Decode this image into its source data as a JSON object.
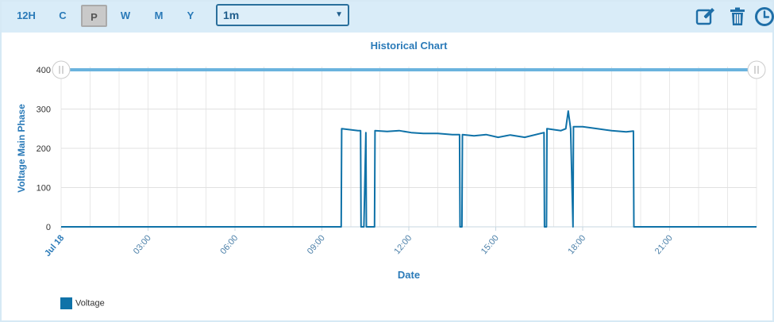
{
  "toolbar": {
    "timeframes": [
      {
        "label": "12H",
        "active": false
      },
      {
        "label": "C",
        "active": false
      },
      {
        "label": "P",
        "active": true
      },
      {
        "label": "W",
        "active": false
      },
      {
        "label": "M",
        "active": false
      },
      {
        "label": "Y",
        "active": false
      }
    ],
    "period": {
      "selected": "1m"
    },
    "icons": [
      "edit-icon",
      "trash-icon",
      "clock-icon"
    ]
  },
  "colors": {
    "accent": "#2a7ab8",
    "series": "#0f72a8",
    "toolbar_bg": "#d9ecf8",
    "slider": "#6ab3de"
  },
  "legend": {
    "items": [
      "Voltage"
    ]
  },
  "chart_data": {
    "type": "line",
    "title": "Historical Chart",
    "xlabel": "Date",
    "ylabel": "Voltage Main Phase",
    "x_tick_labels": [
      "Jul 18",
      "03:00",
      "06:00",
      "09:00",
      "12:00",
      "15:00",
      "18:00",
      "21:00"
    ],
    "y_tick_labels": [
      "0",
      "100",
      "200",
      "300",
      "400"
    ],
    "xlim": [
      "00:00",
      "24:00"
    ],
    "ylim": [
      0,
      400
    ],
    "grid": true,
    "legend_position": "bottom-left",
    "series": [
      {
        "name": "Voltage",
        "x": [
          "00:00",
          "09:40",
          "09:41",
          "10:15",
          "10:20",
          "10:21",
          "10:27",
          "10:31",
          "10:32",
          "10:38",
          "10:44",
          "10:49",
          "10:50",
          "11:15",
          "11:40",
          "12:05",
          "12:30",
          "13:00",
          "13:30",
          "13:45",
          "13:46",
          "13:50",
          "13:51",
          "14:15",
          "14:40",
          "15:05",
          "15:30",
          "16:00",
          "16:40",
          "16:41",
          "16:45",
          "16:46",
          "17:15",
          "17:25",
          "17:30",
          "17:35",
          "17:40",
          "17:41",
          "17:50",
          "18:00",
          "18:30",
          "19:00",
          "19:30",
          "19:45",
          "19:46",
          "24:00"
        ],
        "y": [
          0,
          0,
          250,
          245,
          245,
          0,
          0,
          240,
          0,
          0,
          0,
          0,
          245,
          243,
          245,
          240,
          238,
          238,
          235,
          235,
          0,
          0,
          235,
          232,
          235,
          228,
          234,
          228,
          240,
          0,
          0,
          250,
          245,
          250,
          295,
          250,
          0,
          255,
          255,
          255,
          250,
          245,
          242,
          244,
          0,
          0
        ]
      }
    ]
  }
}
